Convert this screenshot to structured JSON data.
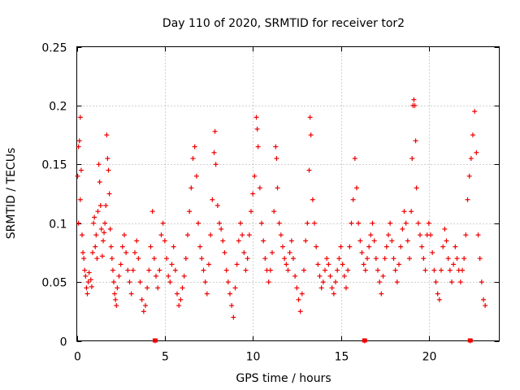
{
  "chart_data": {
    "type": "scatter",
    "title": "Day 110 of 2020, SRMTID for receiver tor2",
    "xlabel": "GPS time / hours",
    "ylabel": "SRMTID / TECUs",
    "xlim": [
      0,
      24
    ],
    "ylim": [
      0,
      0.25
    ],
    "x_ticks": [
      0,
      5,
      10,
      15,
      20
    ],
    "y_ticks": [
      0,
      0.05,
      0.1,
      0.15,
      0.2,
      0.25
    ],
    "x_tick_labels": [
      "0",
      "5",
      "10",
      "15",
      "20"
    ],
    "y_tick_labels": [
      "0",
      "0.05",
      "0.1",
      "0.15",
      "0.2",
      "0.25"
    ],
    "grid": true,
    "marker": "plus",
    "color": "#ee0000",
    "series": [
      {
        "name": "SRMTID",
        "points": [
          [
            0.1,
            0.165
          ],
          [
            0.15,
            0.17
          ],
          [
            0.2,
            0.19
          ],
          [
            0.25,
            0.145
          ],
          [
            0.05,
            0.14
          ],
          [
            0.1,
            0.1
          ],
          [
            0.2,
            0.12
          ],
          [
            0.3,
            0.09
          ],
          [
            0.35,
            0.075
          ],
          [
            0.4,
            0.07
          ],
          [
            0.45,
            0.06
          ],
          [
            0.5,
            0.055
          ],
          [
            0.55,
            0.045
          ],
          [
            0.6,
            0.04
          ],
          [
            0.65,
            0.05
          ],
          [
            0.7,
            0.058
          ],
          [
            0.8,
            0.052
          ],
          [
            0.85,
            0.046
          ],
          [
            0.9,
            0.075
          ],
          [
            0.95,
            0.1
          ],
          [
            1.0,
            0.105
          ],
          [
            1.05,
            0.08
          ],
          [
            1.1,
            0.09
          ],
          [
            1.15,
            0.07
          ],
          [
            1.2,
            0.11
          ],
          [
            1.25,
            0.15
          ],
          [
            1.3,
            0.135
          ],
          [
            1.35,
            0.115
          ],
          [
            1.4,
            0.095
          ],
          [
            1.45,
            0.072
          ],
          [
            1.5,
            0.085
          ],
          [
            1.55,
            0.092
          ],
          [
            1.6,
            0.1
          ],
          [
            1.65,
            0.115
          ],
          [
            1.7,
            0.175
          ],
          [
            1.75,
            0.155
          ],
          [
            1.8,
            0.145
          ],
          [
            1.85,
            0.125
          ],
          [
            1.9,
            0.095
          ],
          [
            1.95,
            0.08
          ],
          [
            2.0,
            0.07
          ],
          [
            2.05,
            0.06
          ],
          [
            2.1,
            0.05
          ],
          [
            2.15,
            0.04
          ],
          [
            2.2,
            0.035
          ],
          [
            2.25,
            0.03
          ],
          [
            2.3,
            0.045
          ],
          [
            2.4,
            0.055
          ],
          [
            2.5,
            0.065
          ],
          [
            2.6,
            0.08
          ],
          [
            2.7,
            0.09
          ],
          [
            2.8,
            0.075
          ],
          [
            2.9,
            0.06
          ],
          [
            3.0,
            0.05
          ],
          [
            3.1,
            0.04
          ],
          [
            3.2,
            0.06
          ],
          [
            3.3,
            0.075
          ],
          [
            3.4,
            0.085
          ],
          [
            3.5,
            0.07
          ],
          [
            3.6,
            0.05
          ],
          [
            3.7,
            0.035
          ],
          [
            3.8,
            0.025
          ],
          [
            3.9,
            0.03
          ],
          [
            4.0,
            0.045
          ],
          [
            4.1,
            0.06
          ],
          [
            4.2,
            0.08
          ],
          [
            4.3,
            0.11
          ],
          [
            4.4,
            0.07
          ],
          [
            4.45,
            0.0
          ],
          [
            4.5,
            0.055
          ],
          [
            4.6,
            0.045
          ],
          [
            4.7,
            0.06
          ],
          [
            4.8,
            0.09
          ],
          [
            4.9,
            0.1
          ],
          [
            5.0,
            0.085
          ],
          [
            5.1,
            0.07
          ],
          [
            5.2,
            0.055
          ],
          [
            5.3,
            0.05
          ],
          [
            5.4,
            0.065
          ],
          [
            5.5,
            0.08
          ],
          [
            5.6,
            0.06
          ],
          [
            5.7,
            0.04
          ],
          [
            5.8,
            0.03
          ],
          [
            5.9,
            0.035
          ],
          [
            6.0,
            0.045
          ],
          [
            6.1,
            0.055
          ],
          [
            6.2,
            0.07
          ],
          [
            6.3,
            0.09
          ],
          [
            6.4,
            0.11
          ],
          [
            6.5,
            0.13
          ],
          [
            6.6,
            0.155
          ],
          [
            6.7,
            0.165
          ],
          [
            6.8,
            0.14
          ],
          [
            6.9,
            0.1
          ],
          [
            7.0,
            0.08
          ],
          [
            7.1,
            0.07
          ],
          [
            7.2,
            0.06
          ],
          [
            7.3,
            0.05
          ],
          [
            7.4,
            0.04
          ],
          [
            7.5,
            0.065
          ],
          [
            7.6,
            0.09
          ],
          [
            7.7,
            0.12
          ],
          [
            7.8,
            0.16
          ],
          [
            7.85,
            0.178
          ],
          [
            7.9,
            0.15
          ],
          [
            8.0,
            0.115
          ],
          [
            8.1,
            0.1
          ],
          [
            8.2,
            0.095
          ],
          [
            8.3,
            0.085
          ],
          [
            8.4,
            0.075
          ],
          [
            8.5,
            0.06
          ],
          [
            8.6,
            0.05
          ],
          [
            8.7,
            0.04
          ],
          [
            8.8,
            0.03
          ],
          [
            8.9,
            0.02
          ],
          [
            9.0,
            0.045
          ],
          [
            9.1,
            0.065
          ],
          [
            9.2,
            0.085
          ],
          [
            9.3,
            0.1
          ],
          [
            9.4,
            0.09
          ],
          [
            9.5,
            0.075
          ],
          [
            9.6,
            0.06
          ],
          [
            9.7,
            0.07
          ],
          [
            9.8,
            0.09
          ],
          [
            9.9,
            0.11
          ],
          [
            10.0,
            0.125
          ],
          [
            10.1,
            0.14
          ],
          [
            10.2,
            0.19
          ],
          [
            10.25,
            0.18
          ],
          [
            10.3,
            0.165
          ],
          [
            10.4,
            0.13
          ],
          [
            10.5,
            0.1
          ],
          [
            10.6,
            0.085
          ],
          [
            10.7,
            0.07
          ],
          [
            10.8,
            0.06
          ],
          [
            10.9,
            0.05
          ],
          [
            11.0,
            0.06
          ],
          [
            11.1,
            0.075
          ],
          [
            11.2,
            0.11
          ],
          [
            11.3,
            0.165
          ],
          [
            11.35,
            0.155
          ],
          [
            11.4,
            0.13
          ],
          [
            11.5,
            0.1
          ],
          [
            11.6,
            0.09
          ],
          [
            11.7,
            0.08
          ],
          [
            11.8,
            0.07
          ],
          [
            11.9,
            0.065
          ],
          [
            12.0,
            0.06
          ],
          [
            12.1,
            0.075
          ],
          [
            12.2,
            0.085
          ],
          [
            12.3,
            0.07
          ],
          [
            12.4,
            0.055
          ],
          [
            12.5,
            0.045
          ],
          [
            12.6,
            0.035
          ],
          [
            12.7,
            0.025
          ],
          [
            12.8,
            0.04
          ],
          [
            12.9,
            0.06
          ],
          [
            13.0,
            0.085
          ],
          [
            13.1,
            0.1
          ],
          [
            13.2,
            0.145
          ],
          [
            13.25,
            0.19
          ],
          [
            13.3,
            0.175
          ],
          [
            13.4,
            0.12
          ],
          [
            13.5,
            0.1
          ],
          [
            13.6,
            0.08
          ],
          [
            13.7,
            0.065
          ],
          [
            13.8,
            0.055
          ],
          [
            13.9,
            0.045
          ],
          [
            14.0,
            0.05
          ],
          [
            14.1,
            0.06
          ],
          [
            14.2,
            0.07
          ],
          [
            14.3,
            0.065
          ],
          [
            14.4,
            0.055
          ],
          [
            14.5,
            0.045
          ],
          [
            14.6,
            0.04
          ],
          [
            14.7,
            0.05
          ],
          [
            14.8,
            0.06
          ],
          [
            14.9,
            0.07
          ],
          [
            15.0,
            0.08
          ],
          [
            15.1,
            0.065
          ],
          [
            15.2,
            0.055
          ],
          [
            15.3,
            0.045
          ],
          [
            15.4,
            0.06
          ],
          [
            15.5,
            0.08
          ],
          [
            15.6,
            0.1
          ],
          [
            15.7,
            0.12
          ],
          [
            15.8,
            0.155
          ],
          [
            15.9,
            0.13
          ],
          [
            16.0,
            0.1
          ],
          [
            16.1,
            0.085
          ],
          [
            16.2,
            0.075
          ],
          [
            16.3,
            0.065
          ],
          [
            16.35,
            0.0
          ],
          [
            16.4,
            0.06
          ],
          [
            16.5,
            0.07
          ],
          [
            16.6,
            0.08
          ],
          [
            16.7,
            0.09
          ],
          [
            16.8,
            0.1
          ],
          [
            16.9,
            0.085
          ],
          [
            17.0,
            0.07
          ],
          [
            17.1,
            0.06
          ],
          [
            17.2,
            0.05
          ],
          [
            17.3,
            0.04
          ],
          [
            17.4,
            0.055
          ],
          [
            17.5,
            0.07
          ],
          [
            17.6,
            0.08
          ],
          [
            17.7,
            0.09
          ],
          [
            17.8,
            0.1
          ],
          [
            17.9,
            0.085
          ],
          [
            18.0,
            0.07
          ],
          [
            18.1,
            0.06
          ],
          [
            18.2,
            0.05
          ],
          [
            18.3,
            0.065
          ],
          [
            18.4,
            0.08
          ],
          [
            18.5,
            0.095
          ],
          [
            18.6,
            0.11
          ],
          [
            18.7,
            0.1
          ],
          [
            18.8,
            0.085
          ],
          [
            18.9,
            0.07
          ],
          [
            19.0,
            0.11
          ],
          [
            19.05,
            0.155
          ],
          [
            19.1,
            0.2
          ],
          [
            19.15,
            0.205
          ],
          [
            19.2,
            0.2
          ],
          [
            19.25,
            0.17
          ],
          [
            19.3,
            0.13
          ],
          [
            19.4,
            0.1
          ],
          [
            19.5,
            0.09
          ],
          [
            19.6,
            0.08
          ],
          [
            19.7,
            0.07
          ],
          [
            19.8,
            0.06
          ],
          [
            19.9,
            0.09
          ],
          [
            20.0,
            0.1
          ],
          [
            20.1,
            0.09
          ],
          [
            20.2,
            0.075
          ],
          [
            20.3,
            0.06
          ],
          [
            20.4,
            0.05
          ],
          [
            20.5,
            0.04
          ],
          [
            20.6,
            0.035
          ],
          [
            20.7,
            0.06
          ],
          [
            20.8,
            0.08
          ],
          [
            20.9,
            0.095
          ],
          [
            21.0,
            0.085
          ],
          [
            21.1,
            0.07
          ],
          [
            21.2,
            0.06
          ],
          [
            21.3,
            0.05
          ],
          [
            21.4,
            0.065
          ],
          [
            21.5,
            0.08
          ],
          [
            21.6,
            0.07
          ],
          [
            21.7,
            0.06
          ],
          [
            21.8,
            0.05
          ],
          [
            21.9,
            0.06
          ],
          [
            22.0,
            0.07
          ],
          [
            22.1,
            0.09
          ],
          [
            22.2,
            0.12
          ],
          [
            22.3,
            0.14
          ],
          [
            22.35,
            0.0
          ],
          [
            22.4,
            0.155
          ],
          [
            22.5,
            0.175
          ],
          [
            22.6,
            0.195
          ],
          [
            22.7,
            0.16
          ],
          [
            22.8,
            0.09
          ],
          [
            22.9,
            0.07
          ],
          [
            23.0,
            0.05
          ],
          [
            23.1,
            0.035
          ],
          [
            23.2,
            0.03
          ]
        ]
      }
    ],
    "zero_markers": [
      4.45,
      16.35,
      22.35
    ]
  }
}
